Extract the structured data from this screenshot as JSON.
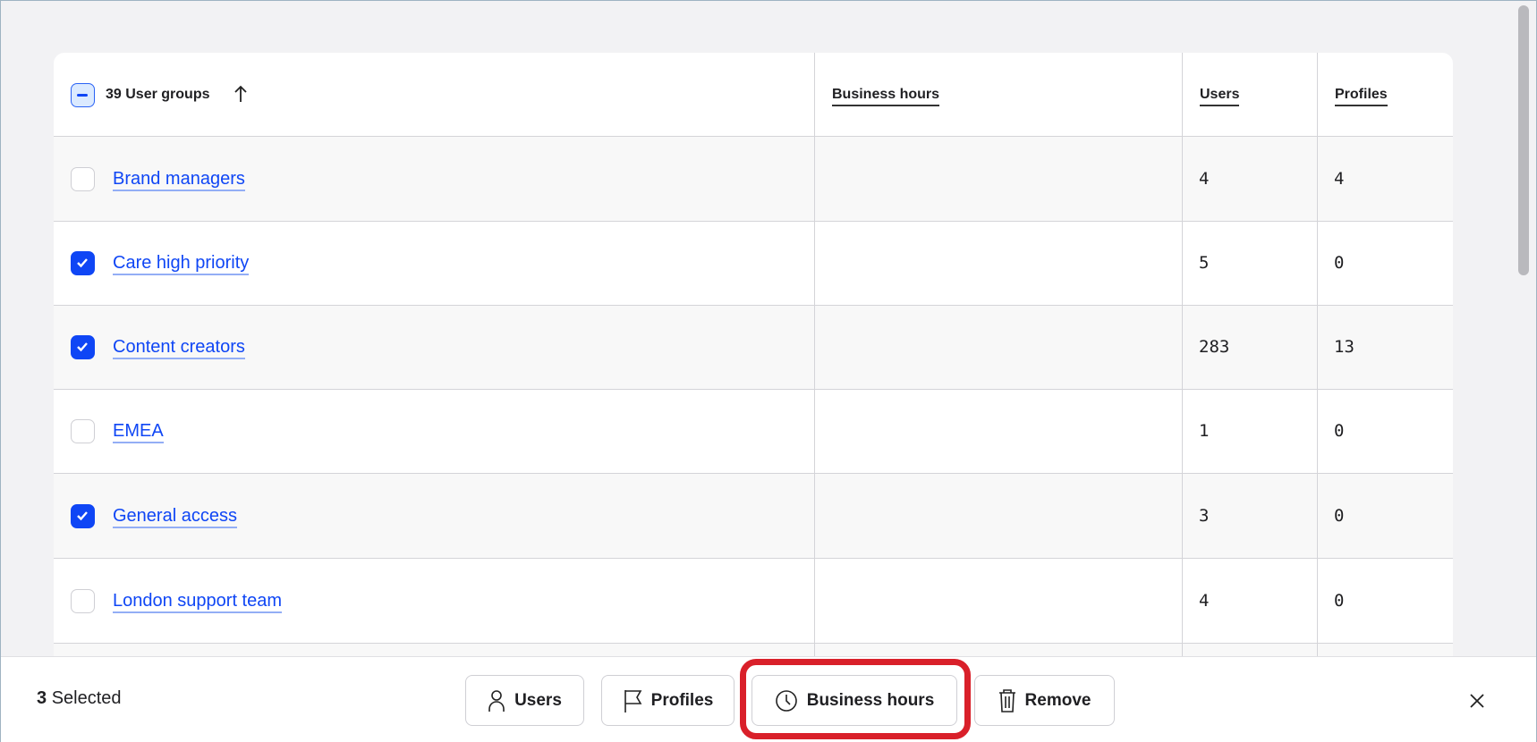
{
  "table": {
    "header": {
      "group_count_label": "39 User groups",
      "sort_icon": "arrow-up-icon",
      "business_hours": "Business hours",
      "users": "Users",
      "profiles": "Profiles"
    },
    "rows": [
      {
        "name": "Brand managers",
        "business_hours": "",
        "users": "4",
        "profiles": "4",
        "checked": false
      },
      {
        "name": "Care high priority",
        "business_hours": "",
        "users": "5",
        "profiles": "0",
        "checked": true
      },
      {
        "name": "Content creators",
        "business_hours": "",
        "users": "283",
        "profiles": "13",
        "checked": true
      },
      {
        "name": "EMEA",
        "business_hours": "",
        "users": "1",
        "profiles": "0",
        "checked": false
      },
      {
        "name": "General access",
        "business_hours": "",
        "users": "3",
        "profiles": "0",
        "checked": true
      },
      {
        "name": "London support team",
        "business_hours": "",
        "users": "4",
        "profiles": "0",
        "checked": false
      }
    ]
  },
  "action_bar": {
    "selected_count": "3",
    "selected_label": "Selected",
    "buttons": [
      {
        "label": "Users",
        "icon": "user-icon"
      },
      {
        "label": "Profiles",
        "icon": "flag-icon"
      },
      {
        "label": "Business hours",
        "icon": "clock-icon"
      },
      {
        "label": "Remove",
        "icon": "trash-icon"
      }
    ],
    "close_icon": "close-icon"
  },
  "colors": {
    "accent": "#0f46f5",
    "highlight": "#d9202a"
  }
}
